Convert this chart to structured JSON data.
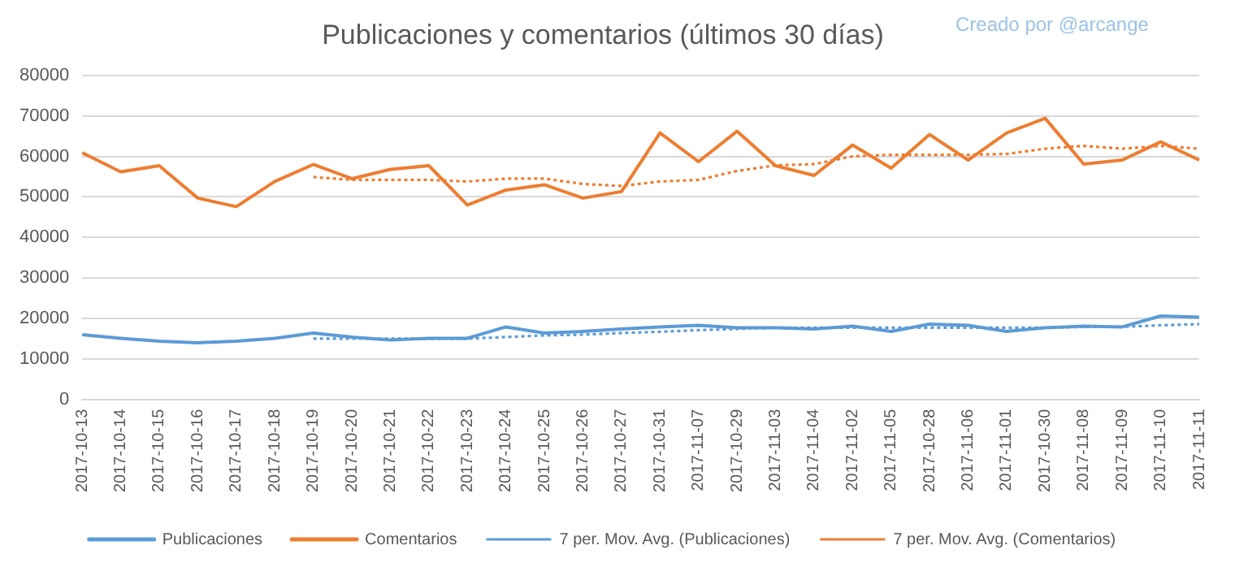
{
  "chart_data": {
    "type": "line",
    "title": "Publicaciones y comentarios (últimos 30 días)",
    "annotations": [
      "Creado por @arcange"
    ],
    "categories": [
      "2017-10-13",
      "2017-10-14",
      "2017-10-15",
      "2017-10-16",
      "2017-10-17",
      "2017-10-18",
      "2017-10-19",
      "2017-10-20",
      "2017-10-21",
      "2017-10-22",
      "2017-10-23",
      "2017-10-24",
      "2017-10-25",
      "2017-10-26",
      "2017-10-27",
      "2017-10-31",
      "2017-11-07",
      "2017-10-29",
      "2017-11-03",
      "2017-11-04",
      "2017-11-02",
      "2017-11-05",
      "2017-10-28",
      "2017-11-06",
      "2017-11-01",
      "2017-10-30",
      "2017-11-08",
      "2017-11-09",
      "2017-11-10",
      "2017-11-11"
    ],
    "series": [
      {
        "name": "Publicaciones",
        "color": "#5b9bd5",
        "line_style": "solid",
        "values": [
          16000,
          15100,
          14400,
          14000,
          14400,
          15100,
          16400,
          15400,
          14700,
          15100,
          15100,
          17900,
          16400,
          16800,
          17400,
          17900,
          18300,
          17700,
          17700,
          17400,
          18100,
          16800,
          18600,
          18300,
          16800,
          17700,
          18100,
          17900,
          20600,
          20300
        ]
      },
      {
        "name": "Comentarios",
        "color": "#ed7d31",
        "line_style": "solid",
        "values": [
          60900,
          56200,
          57700,
          49700,
          47600,
          53800,
          58000,
          54500,
          56800,
          57700,
          48000,
          51700,
          53000,
          49700,
          51300,
          65800,
          58700,
          66200,
          57700,
          55300,
          62800,
          57100,
          65400,
          59100,
          65800,
          69400,
          58100,
          59100,
          63600,
          59100
        ]
      },
      {
        "name": "7 per. Mov. Avg. (Publicaciones)",
        "color": "#5b9bd5",
        "line_style": "dotted",
        "values": [
          null,
          null,
          null,
          null,
          null,
          null,
          15000,
          15000,
          15000,
          15000,
          15000,
          15400,
          15800,
          16000,
          16400,
          16700,
          17100,
          17400,
          17700,
          17700,
          17700,
          17700,
          17700,
          17700,
          17700,
          17700,
          17900,
          17900,
          18300,
          18600
        ]
      },
      {
        "name": "7 per. Mov. Avg. (Comentarios)",
        "color": "#ed7d31",
        "line_style": "dotted",
        "values": [
          null,
          null,
          null,
          null,
          null,
          null,
          54900,
          54200,
          54200,
          54200,
          53800,
          54500,
          54500,
          53200,
          52700,
          53800,
          54200,
          56400,
          57800,
          58100,
          60000,
          60400,
          60400,
          60400,
          60600,
          61900,
          62600,
          61900,
          62600,
          61900
        ]
      }
    ],
    "ylim": [
      0,
      80000
    ],
    "yticks": [
      0,
      10000,
      20000,
      30000,
      40000,
      50000,
      60000,
      70000,
      80000
    ],
    "grid": "y",
    "legend": "bottom",
    "marker": "none"
  }
}
